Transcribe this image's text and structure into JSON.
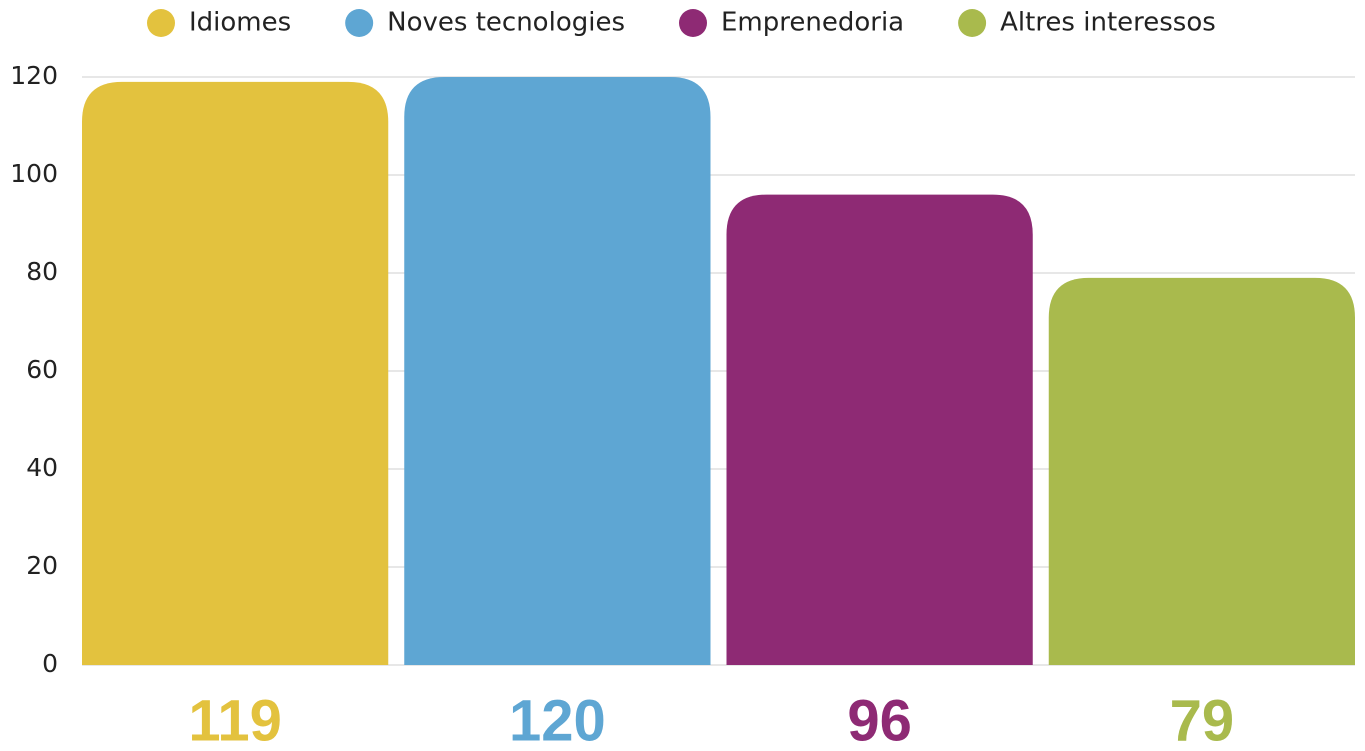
{
  "chart_data": {
    "type": "bar",
    "categories": [
      "Idiomes",
      "Noves tecnologies",
      "Emprenedoria",
      "Altres interessos"
    ],
    "values": [
      119,
      120,
      96,
      79
    ],
    "colors": [
      "#e3c23e",
      "#5ea6d3",
      "#8e2a74",
      "#a9ba4d"
    ],
    "ylim": [
      0,
      120
    ],
    "yticks": [
      0,
      20,
      40,
      60,
      80,
      100,
      120
    ],
    "grid": true,
    "legend": "top"
  }
}
